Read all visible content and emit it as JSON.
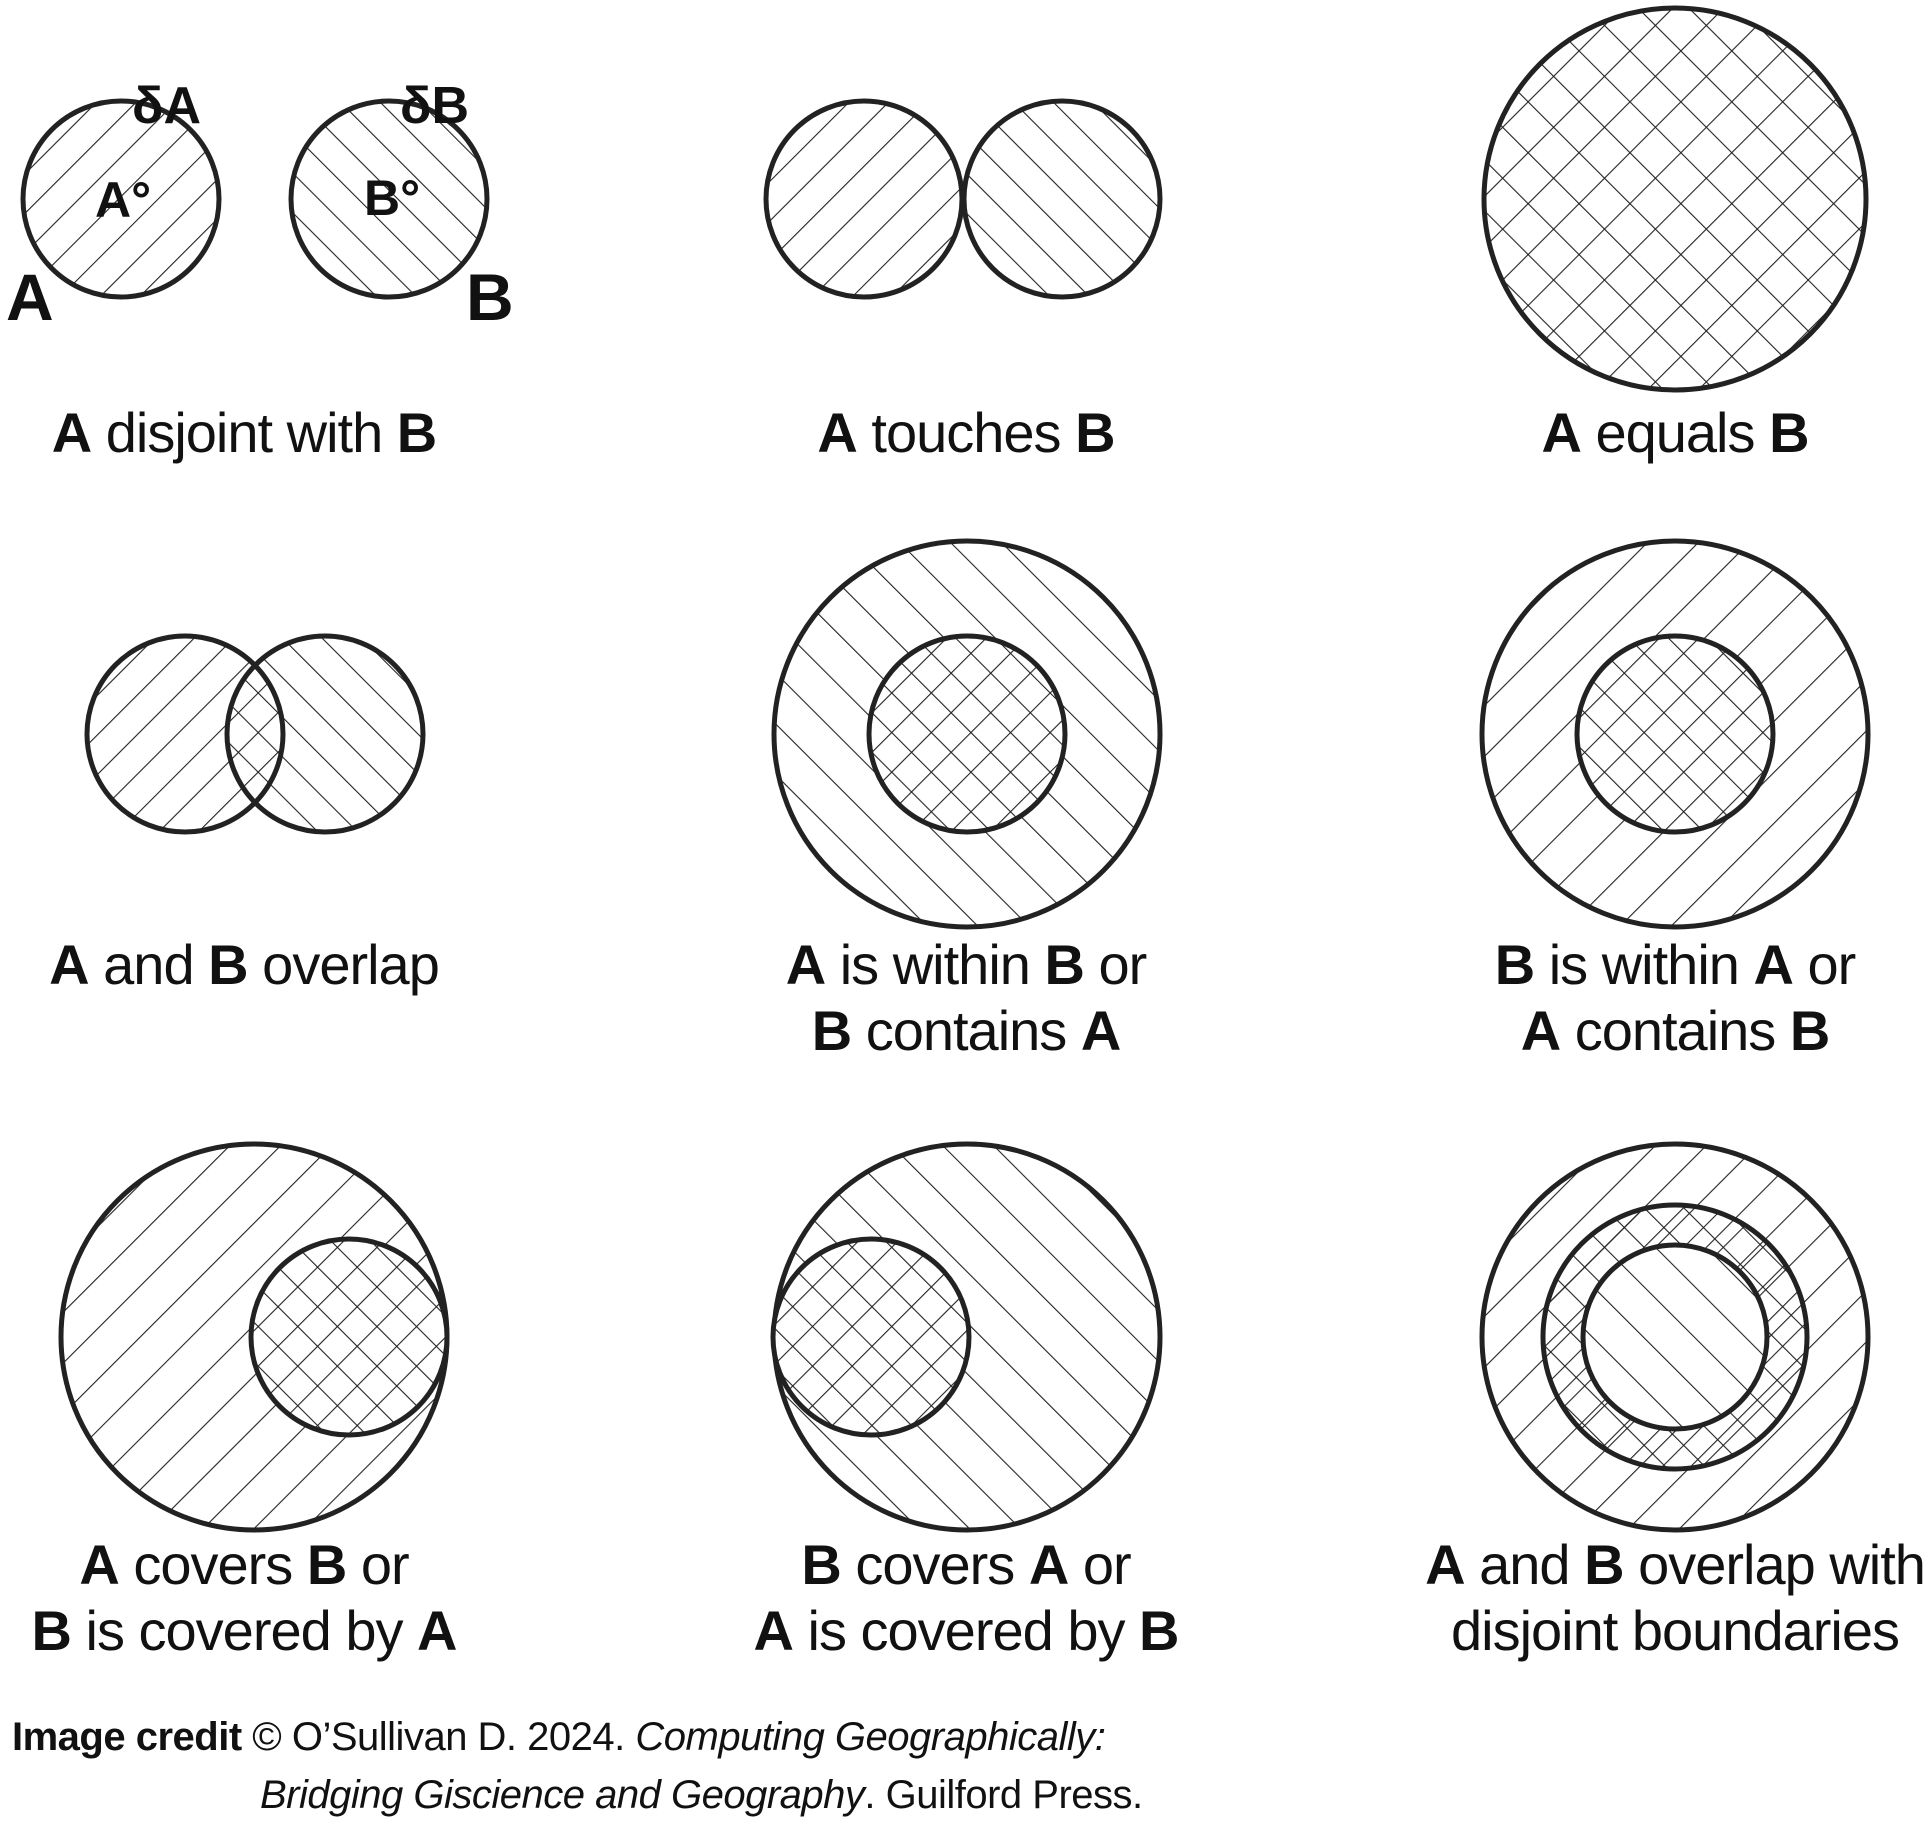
{
  "labels": {
    "a_big": "A",
    "b_big": "B",
    "boundary_a": "δA",
    "boundary_b": "δB",
    "interior_a": "A°",
    "interior_b": "B°"
  },
  "captions": {
    "disjoint": [
      {
        "t": "A",
        "b": true
      },
      {
        "t": " disjoint with ",
        "b": false
      },
      {
        "t": "B",
        "b": true
      }
    ],
    "touches": [
      {
        "t": "A",
        "b": true
      },
      {
        "t": " touches ",
        "b": false
      },
      {
        "t": "B",
        "b": true
      }
    ],
    "equals": [
      {
        "t": "A",
        "b": true
      },
      {
        "t": " equals ",
        "b": false
      },
      {
        "t": "B",
        "b": true
      }
    ],
    "overlap": [
      {
        "t": "A",
        "b": true
      },
      {
        "t": " and ",
        "b": false
      },
      {
        "t": "B",
        "b": true
      },
      {
        "t": " overlap",
        "b": false
      }
    ],
    "within_1": [
      {
        "t": "A",
        "b": true
      },
      {
        "t": " is within ",
        "b": false
      },
      {
        "t": "B",
        "b": true
      },
      {
        "t": " or",
        "b": false
      }
    ],
    "within_2": [
      {
        "t": "B",
        "b": true
      },
      {
        "t": " contains ",
        "b": false
      },
      {
        "t": "A",
        "b": true
      }
    ],
    "bwithin_1": [
      {
        "t": "B",
        "b": true
      },
      {
        "t": " is within ",
        "b": false
      },
      {
        "t": "A",
        "b": true
      },
      {
        "t": " or",
        "b": false
      }
    ],
    "bwithin_2": [
      {
        "t": "A",
        "b": true
      },
      {
        "t": " contains ",
        "b": false
      },
      {
        "t": "B",
        "b": true
      }
    ],
    "covers_1": [
      {
        "t": "A",
        "b": true
      },
      {
        "t": " covers ",
        "b": false
      },
      {
        "t": "B",
        "b": true
      },
      {
        "t": " or",
        "b": false
      }
    ],
    "covers_2": [
      {
        "t": "B",
        "b": true
      },
      {
        "t": " is covered by ",
        "b": false
      },
      {
        "t": "A",
        "b": true
      }
    ],
    "bcovers_1": [
      {
        "t": "B",
        "b": true
      },
      {
        "t": " covers ",
        "b": false
      },
      {
        "t": "A",
        "b": true
      },
      {
        "t": " or",
        "b": false
      }
    ],
    "bcovers_2": [
      {
        "t": "A",
        "b": true
      },
      {
        "t": " is covered by ",
        "b": false
      },
      {
        "t": "B",
        "b": true
      }
    ],
    "disjb_1": [
      {
        "t": "A",
        "b": true
      },
      {
        "t": " and ",
        "b": false
      },
      {
        "t": "B",
        "b": true
      },
      {
        "t": " overlap with",
        "b": false
      }
    ],
    "disjb_2": [
      {
        "t": "disjoint boundaries",
        "b": false
      }
    ]
  },
  "credit": {
    "bold": "Image credit",
    "text1": " © O’Sullivan D. 2024. ",
    "italic1": "Computing Geographically:",
    "italic2": "Bridging Giscience and Geography",
    "text2": ". Guilford Press."
  }
}
